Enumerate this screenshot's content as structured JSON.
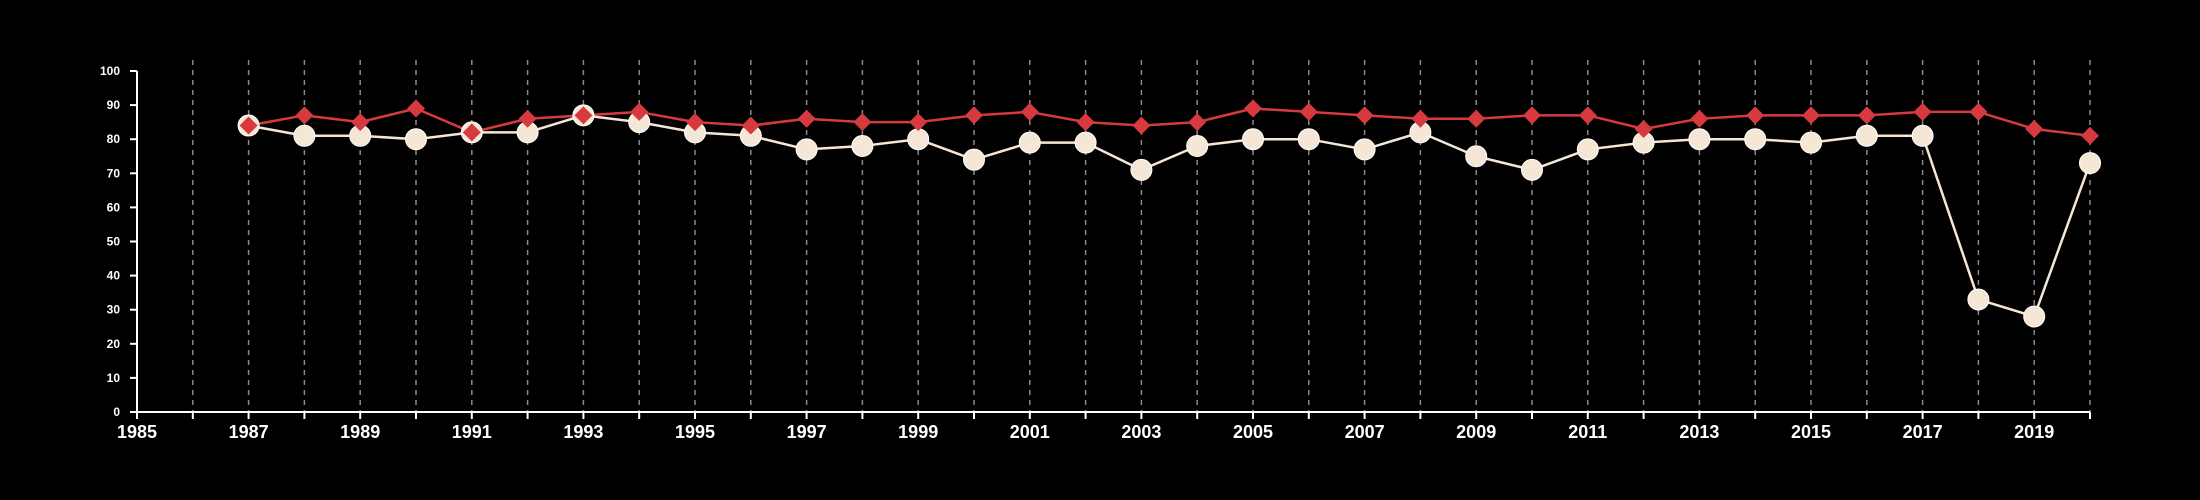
{
  "chart_data": {
    "type": "line",
    "title": "",
    "xlabel": "",
    "ylabel": "",
    "xlim": [
      1985,
      2020
    ],
    "ylim": [
      0,
      100
    ],
    "x_ticks": [
      1985,
      1987,
      1989,
      1991,
      1993,
      1995,
      1997,
      1999,
      2001,
      2003,
      2005,
      2007,
      2009,
      2011,
      2013,
      2015,
      2017,
      2019
    ],
    "x_tick_labels": [
      "1985",
      "1987",
      "1989",
      "1991",
      "1993",
      "1995",
      "1997",
      "1999",
      "2001",
      "2003",
      "2005",
      "2007",
      "2009",
      "2011",
      "2013",
      "2015",
      "2017",
      "2019"
    ],
    "y_ticks": [
      0,
      10,
      20,
      30,
      40,
      50,
      60,
      70,
      80,
      90,
      100
    ],
    "y_tick_labels": [
      "0",
      "10",
      "20",
      "30",
      "40",
      "50",
      "60",
      "70",
      "80",
      "90",
      "100"
    ],
    "grid": "vertical dashed, every year",
    "legend": "none",
    "series": [
      {
        "color": "#d63a3f",
        "marker": "diamond",
        "x": [
          1987,
          1988,
          1989,
          1990,
          1991,
          1992,
          1993,
          1994,
          1995,
          1996,
          1997,
          1998,
          1999,
          2000,
          2001,
          2002,
          2003,
          2004,
          2005,
          2006,
          2007,
          2008,
          2009,
          2010,
          2011,
          2012,
          2013,
          2014,
          2015,
          2016,
          2017,
          2018,
          2019,
          2020
        ],
        "values": [
          84,
          87,
          85,
          89,
          82,
          86,
          87,
          88,
          85,
          84,
          86,
          85,
          85,
          87,
          88,
          85,
          84,
          85,
          89,
          88,
          87,
          86,
          86,
          87,
          87,
          83,
          86,
          87,
          87,
          87,
          88,
          88,
          83,
          81
        ]
      },
      {
        "color": "#f5e6d6",
        "marker": "circle",
        "x": [
          1987,
          1988,
          1989,
          1990,
          1991,
          1992,
          1993,
          1994,
          1995,
          1996,
          1997,
          1998,
          1999,
          2000,
          2001,
          2002,
          2003,
          2004,
          2005,
          2006,
          2007,
          2008,
          2009,
          2010,
          2011,
          2012,
          2013,
          2014,
          2015,
          2016,
          2017,
          2018,
          2019,
          2020
        ],
        "values": [
          84,
          81,
          81,
          80,
          82,
          82,
          87,
          85,
          82,
          81,
          77,
          78,
          80,
          74,
          79,
          79,
          71,
          78,
          80,
          80,
          77,
          82,
          75,
          71,
          77,
          79,
          80,
          80,
          79,
          81,
          81,
          33,
          28,
          73
        ]
      }
    ],
    "colors": {
      "background": "#000000",
      "axis": "#ffffff",
      "grid": "#8a8a8a"
    }
  }
}
